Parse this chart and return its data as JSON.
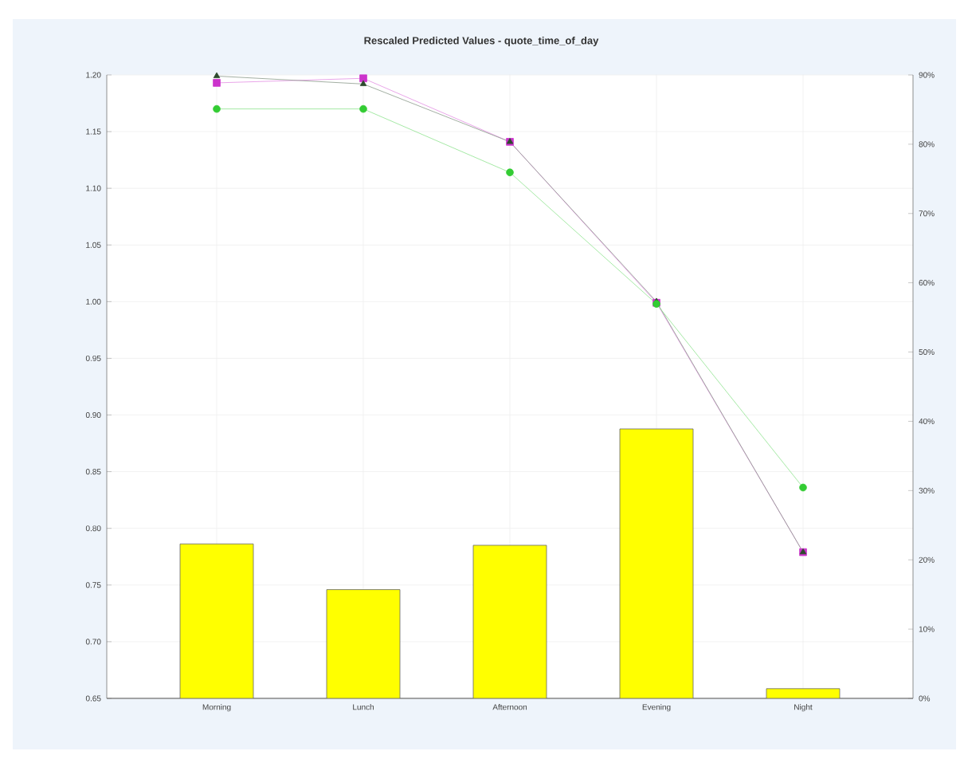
{
  "chart_data": {
    "type": "line",
    "title": "Rescaled Predicted Values - quote_time_of_day",
    "categories": [
      "Morning",
      "Lunch",
      "Afternoon",
      "Evening",
      "Night"
    ],
    "series": [
      {
        "type": "bar",
        "axis": "y2",
        "color": "#ffff00",
        "values": [
          22.3,
          15.7,
          22.1,
          38.9,
          1.4
        ]
      },
      {
        "marker": "square",
        "color": "#cc33cc",
        "values": [
          1.193,
          1.197,
          1.141,
          0.999,
          0.779
        ]
      },
      {
        "marker": "triangle",
        "color": "#2d4a2d",
        "values": [
          1.199,
          1.192,
          1.141,
          1.0,
          0.779
        ]
      },
      {
        "marker": "circle",
        "color": "#33cc33",
        "values": [
          1.17,
          1.17,
          1.114,
          0.998,
          0.836
        ]
      }
    ],
    "ylim": [
      0.65,
      1.2
    ],
    "yticks": [
      {
        "value": 0.65,
        "label": "0.65"
      },
      {
        "value": 0.7,
        "label": "0.70"
      },
      {
        "value": 0.75,
        "label": "0.75"
      },
      {
        "value": 0.8,
        "label": "0.80"
      },
      {
        "value": 0.85,
        "label": "0.85"
      },
      {
        "value": 0.9,
        "label": "0.90"
      },
      {
        "value": 0.95,
        "label": "0.95"
      },
      {
        "value": 1.0,
        "label": "1.00"
      },
      {
        "value": 1.05,
        "label": "1.05"
      },
      {
        "value": 1.1,
        "label": "1.10"
      },
      {
        "value": 1.15,
        "label": "1.15"
      },
      {
        "value": 1.2,
        "label": "1.20"
      }
    ],
    "y2lim": [
      0,
      90
    ],
    "y2ticks": [
      {
        "value": 0,
        "label": "0%"
      },
      {
        "value": 10,
        "label": "10%"
      },
      {
        "value": 20,
        "label": "20%"
      },
      {
        "value": 30,
        "label": "30%"
      },
      {
        "value": 40,
        "label": "40%"
      },
      {
        "value": 50,
        "label": "50%"
      },
      {
        "value": 60,
        "label": "60%"
      },
      {
        "value": 70,
        "label": "70%"
      },
      {
        "value": 80,
        "label": "80%"
      },
      {
        "value": 90,
        "label": "90%"
      }
    ],
    "grid": true
  }
}
